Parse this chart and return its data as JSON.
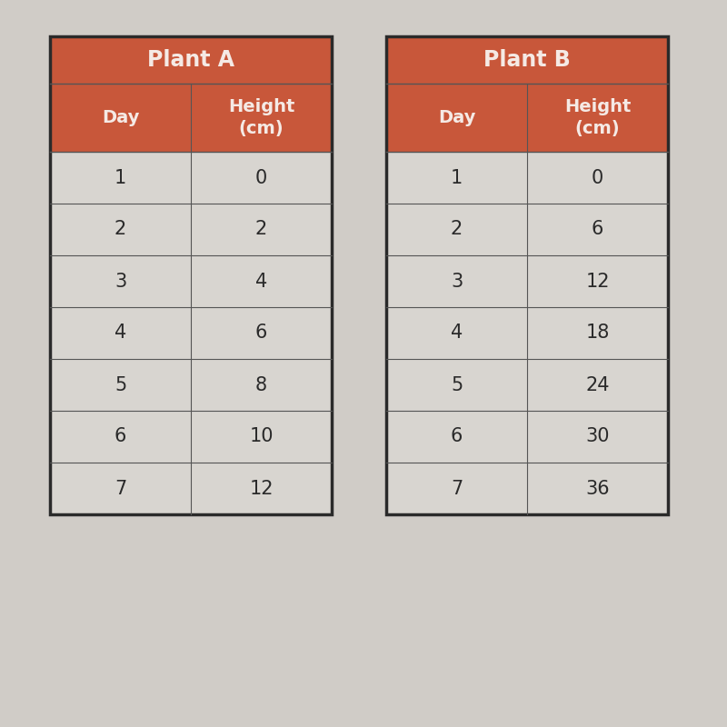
{
  "plant_a": {
    "title": "Plant A",
    "col1_header": "Day",
    "col2_header": "Height\n(cm)",
    "days": [
      "1",
      "2",
      "3",
      "4",
      "5",
      "6",
      "7"
    ],
    "heights": [
      "0",
      "2",
      "4",
      "6",
      "8",
      "10",
      "12"
    ]
  },
  "plant_b": {
    "title": "Plant B",
    "col1_header": "Day",
    "col2_header": "Height\n(cm)",
    "days": [
      "1",
      "2",
      "3",
      "4",
      "5",
      "6",
      "7"
    ],
    "heights": [
      "0",
      "6",
      "12",
      "18",
      "24",
      "30",
      "36"
    ]
  },
  "header_bg_color": "#C8573A",
  "title_bg_color": "#C8573A",
  "header_text_color": "#F5EAE5",
  "cell_bg_color": "#D8D5D0",
  "cell_text_color": "#2A2A2A",
  "inner_border_color": "#555555",
  "outer_border_color": "#2A2A2A",
  "background_color": "#D0CCC7",
  "title_fontsize": 17,
  "header_fontsize": 14,
  "cell_fontsize": 15
}
